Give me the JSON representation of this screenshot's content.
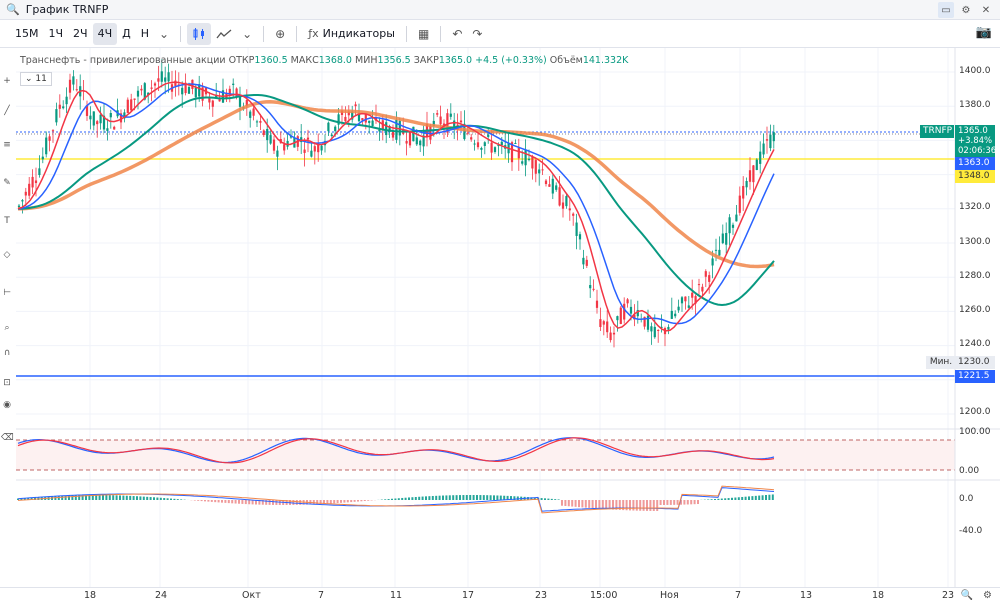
{
  "window": {
    "title": "График TRNFP",
    "controls": [
      "▭",
      "⚙",
      "✕"
    ]
  },
  "toolbar": {
    "timeframes": [
      "15M",
      "1Ч",
      "2Ч",
      "4Ч",
      "Д",
      "Н"
    ],
    "active_timeframe": "4Ч",
    "indicators_label": "Индикаторы"
  },
  "legend": {
    "name": "Транснефть - привилегированные акции",
    "open_label": "ОТКР",
    "open": "1360.5",
    "high_label": "МАКС",
    "high": "1368.0",
    "low_label": "МИН",
    "low": "1356.5",
    "close_label": "ЗАКР",
    "close": "1365.0",
    "change": "+4.5 (+0.33%)",
    "volume_label": "Объём",
    "volume": "141.332K",
    "indicator_count": "11"
  },
  "price_axis": {
    "ticks": [
      "1400.0",
      "1380.0",
      "1360.0",
      "1340.0",
      "1320.0",
      "1300.0",
      "1280.0",
      "1260.0",
      "1240.0",
      "1220.0",
      "1200.0"
    ],
    "symbol_tag": "TRNFP",
    "last_price": "1365.0",
    "last_change": "+3.84%",
    "countdown": "02:06:36",
    "line_blue": "1363.0",
    "line_yellow": "1348.0",
    "min_label": "Мин.",
    "min_value": "1230.0",
    "support_value": "1221.5"
  },
  "stoch_axis": {
    "ticks": [
      "100.00",
      "0.00"
    ]
  },
  "macd_axis": {
    "ticks": [
      "0.0",
      "-40.0"
    ]
  },
  "date_axis": [
    "18",
    "24",
    "Окт",
    "7",
    "11",
    "17",
    "23",
    "15:00",
    "Ноя",
    "7",
    "13",
    "18",
    "23"
  ],
  "colors": {
    "up": "#089981",
    "down": "#f23645",
    "ma_fast": "#f23645",
    "ma_mid": "#2962ff",
    "ma_slow": "#089981",
    "ma_long": "#f0864a",
    "yellow_line": "#ffeb3b",
    "blue_line": "#2962ff"
  }
}
